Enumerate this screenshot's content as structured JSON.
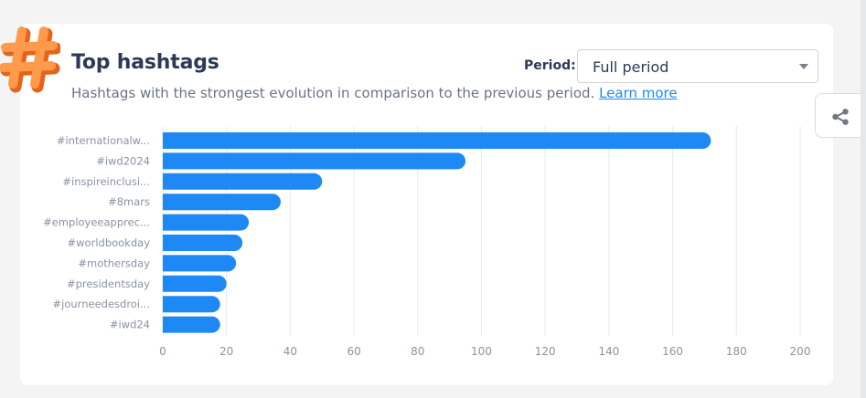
{
  "header": {
    "title": "Top hashtags",
    "subtitle": "Hashtags with the strongest evolution in comparison to the previous period.",
    "learn_more": "Learn more",
    "period_label": "Period:",
    "period_value": "Full period",
    "logo_icon": "hashtag-icon",
    "share_icon": "share-icon"
  },
  "colors": {
    "bar": "#1e88f5",
    "logo": "#ff8a3d",
    "title": "#2b3a55"
  },
  "chart_data": {
    "type": "bar",
    "orientation": "horizontal",
    "categories": [
      "#internationalw...",
      "#iwd2024",
      "#inspireinclusi...",
      "#8mars",
      "#employeeapprec...",
      "#worldbookday",
      "#mothersday",
      "#presidentsday",
      "#journeedesdroi...",
      "#iwd24"
    ],
    "values": [
      172,
      95,
      50,
      37,
      27,
      25,
      23,
      20,
      18,
      18
    ],
    "xlim": [
      0,
      200
    ],
    "xticks": [
      0,
      20,
      40,
      60,
      80,
      100,
      120,
      140,
      160,
      180,
      200
    ],
    "grid": "vertical",
    "legend": "none"
  }
}
